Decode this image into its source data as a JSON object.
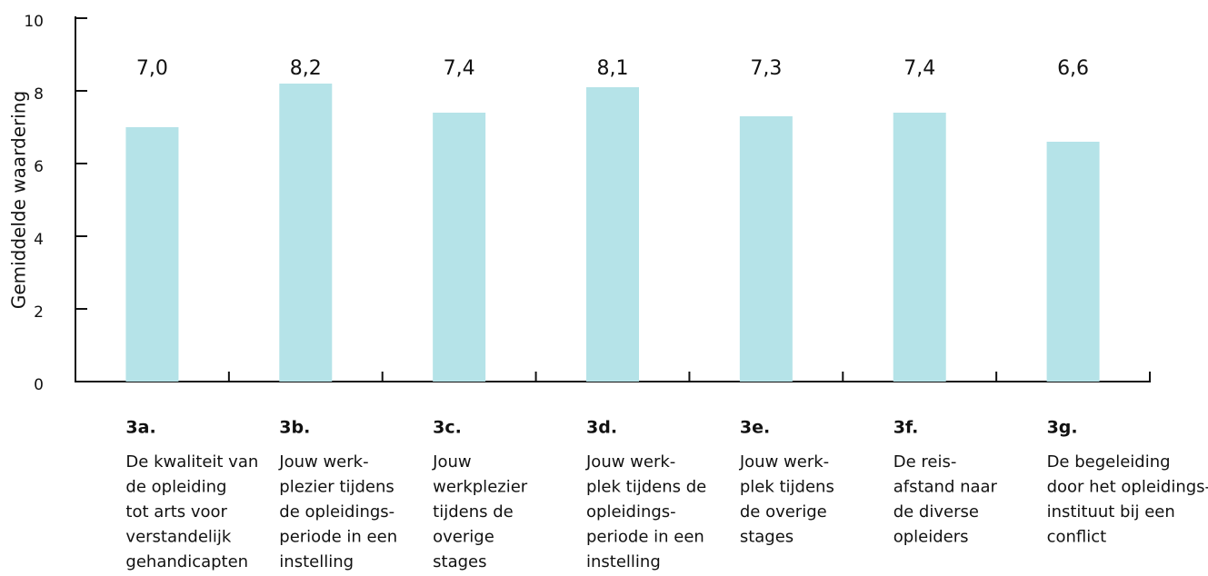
{
  "chart_data": {
    "type": "bar",
    "y_label": "Gemiddelde waardering",
    "categories": [
      "3a.",
      "3b.",
      "3c.",
      "3d.",
      "3e.",
      "3f.",
      "3g."
    ],
    "category_descriptions": [
      [
        "De kwaliteit van",
        "de opleiding",
        "tot arts voor",
        "verstandelijk",
        "gehandicapten"
      ],
      [
        "Jouw werk-",
        "plezier tijdens",
        "de opleidings-",
        "periode in een",
        "instelling"
      ],
      [
        "Jouw",
        "werkplezier",
        "tijdens de",
        "overige",
        "stages"
      ],
      [
        "Jouw werk-",
        "plek tijdens de",
        "opleidings-",
        "periode in een",
        "instelling"
      ],
      [
        "Jouw werk-",
        "plek tijdens",
        "de overige",
        "stages"
      ],
      [
        "De reis-",
        "afstand naar",
        "de diverse",
        "opleiders"
      ],
      [
        "De begeleiding",
        "door het opleidings-",
        "instituut bij een",
        "conflict"
      ]
    ],
    "values": [
      7.0,
      8.2,
      7.4,
      8.1,
      7.3,
      7.4,
      6.6
    ],
    "value_labels": [
      "7,0",
      "8,2",
      "7,4",
      "8,1",
      "7,3",
      "7,4",
      "6,6"
    ],
    "color": "#b5e3e8",
    "ylim": [
      0,
      10
    ],
    "yticks": [
      0,
      2,
      4,
      6,
      8,
      10
    ],
    "grid": false
  }
}
